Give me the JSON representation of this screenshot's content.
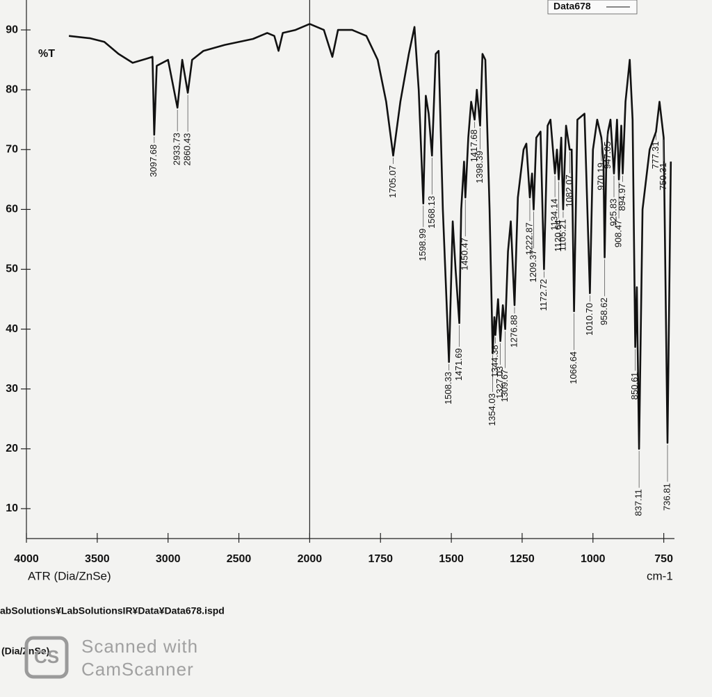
{
  "chart_data": {
    "type": "line",
    "series": [
      {
        "name": "Data678",
        "color": "#111111",
        "values": [
          89,
          88.6,
          88,
          86,
          84.5,
          85.2,
          85.5,
          72.5,
          84,
          85,
          77,
          85,
          79.5,
          85,
          86.5,
          87.5,
          88.5,
          89.5,
          89,
          86.5,
          89.5,
          90,
          91,
          90,
          85.5,
          90,
          90,
          89,
          85,
          78,
          69,
          78,
          86,
          90.5,
          80,
          61,
          79,
          76,
          69,
          86,
          86.5,
          60,
          34.5,
          58,
          50,
          41,
          60,
          68,
          62,
          72,
          78,
          75,
          80,
          74,
          86,
          85,
          60,
          36,
          42,
          39,
          45,
          38,
          44,
          40,
          53,
          58,
          44,
          62,
          70,
          71,
          62,
          66,
          60,
          72,
          73,
          50,
          74,
          75,
          66,
          70,
          65,
          72,
          60,
          74,
          70,
          70,
          43,
          75,
          76,
          46,
          70,
          75,
          72,
          68,
          52,
          70,
          73,
          75,
          66,
          75,
          65,
          74,
          66,
          78,
          85,
          75,
          37,
          47,
          20,
          60,
          70,
          73,
          78,
          72,
          21,
          68
        ]
      }
    ],
    "x": [
      3700,
      3550,
      3450,
      3350,
      3250,
      3150,
      3110,
      3097.68,
      3080,
      3000,
      2933.73,
      2900,
      2860.43,
      2830,
      2750,
      2600,
      2400,
      2300,
      2250,
      2220,
      2190,
      2100,
      2000,
      1950,
      1920,
      1900,
      1850,
      1800,
      1760,
      1730,
      1705.07,
      1680,
      1650,
      1630,
      1615,
      1598.99,
      1590,
      1580,
      1568.13,
      1555,
      1545,
      1530,
      1508.33,
      1495,
      1485,
      1471.69,
      1465,
      1455,
      1450.47,
      1440,
      1430,
      1417.68,
      1410,
      1398.39,
      1390,
      1380,
      1365,
      1354.03,
      1348,
      1344.38,
      1335,
      1327.03,
      1318,
      1309.67,
      1300,
      1290,
      1276.88,
      1265,
      1245,
      1235,
      1222.87,
      1215,
      1209.37,
      1200,
      1185,
      1172.72,
      1160,
      1150,
      1134.14,
      1127,
      1120.64,
      1112,
      1105.21,
      1095,
      1082.07,
      1075,
      1066.64,
      1055,
      1030,
      1010.7,
      1000,
      985,
      970.19,
      963,
      958.62,
      952,
      947.05,
      938,
      925.83,
      915,
      908.47,
      900,
      894.97,
      885,
      870,
      860,
      850.61,
      845,
      837.11,
      825,
      800,
      777.31,
      765,
      750.31,
      736.81,
      725
    ],
    "xlim": [
      4000,
      700
    ],
    "xbreak": 2000,
    "ylim": [
      5,
      95
    ],
    "xticks": [
      4000,
      3500,
      3000,
      2500,
      2000,
      1750,
      1500,
      1250,
      1000,
      750
    ],
    "yticks": [
      10,
      20,
      30,
      40,
      50,
      60,
      70,
      80,
      90
    ],
    "ylabel": "%T",
    "xlabel": "ATR (Dia/ZnSe)",
    "xunit": "cm-1",
    "legend": "top-right",
    "peaks": {
      "x": [
        3097.68,
        2933.73,
        2860.43,
        1705.07,
        1598.99,
        1568.13,
        1508.33,
        1471.69,
        1450.47,
        1417.68,
        1398.39,
        1354.03,
        1344.38,
        1327.03,
        1309.67,
        1276.88,
        1222.87,
        1209.37,
        1172.72,
        1134.14,
        1120.64,
        1105.21,
        1082.07,
        1066.64,
        1010.7,
        970.19,
        958.62,
        947.05,
        925.83,
        908.47,
        894.97,
        850.61,
        837.11,
        777.31,
        750.31,
        736.81
      ],
      "y": [
        72.5,
        77,
        79.5,
        69,
        61,
        69,
        34.5,
        41,
        62,
        75,
        74,
        36,
        39,
        38,
        40,
        44,
        62,
        60,
        50,
        66,
        65,
        60,
        70,
        43,
        46,
        72,
        52,
        73,
        66,
        65,
        66,
        37,
        20,
        73,
        72,
        21
      ],
      "labels": [
        "3097.68",
        "2933.73",
        "2860.43",
        "1705.07",
        "1598.99",
        "1568.13",
        "1508.33",
        "1471.69",
        "1450.47",
        "1417.68",
        "1398.39",
        "1354.03",
        "1344.38",
        "1327.03",
        "1309.67",
        "1276.88",
        "1222.87",
        "1209.37",
        "1172.72",
        "1134.14",
        "1120.64",
        "1105.21",
        "1082.07",
        "1066.64",
        "1010.70",
        "970.19",
        "958.62",
        "947.05",
        "925.83",
        "908.47",
        "894.97",
        "850.61",
        "837.11",
        "777.31",
        "750.31",
        "736.81"
      ]
    }
  },
  "footer": {
    "path": "abSolutions¥LabSolutionsIR¥Data¥Data678.ispd",
    "method": "(Dia/ZnSe)"
  },
  "watermark": {
    "line1": "Scanned with",
    "line2": "CamScanner"
  }
}
